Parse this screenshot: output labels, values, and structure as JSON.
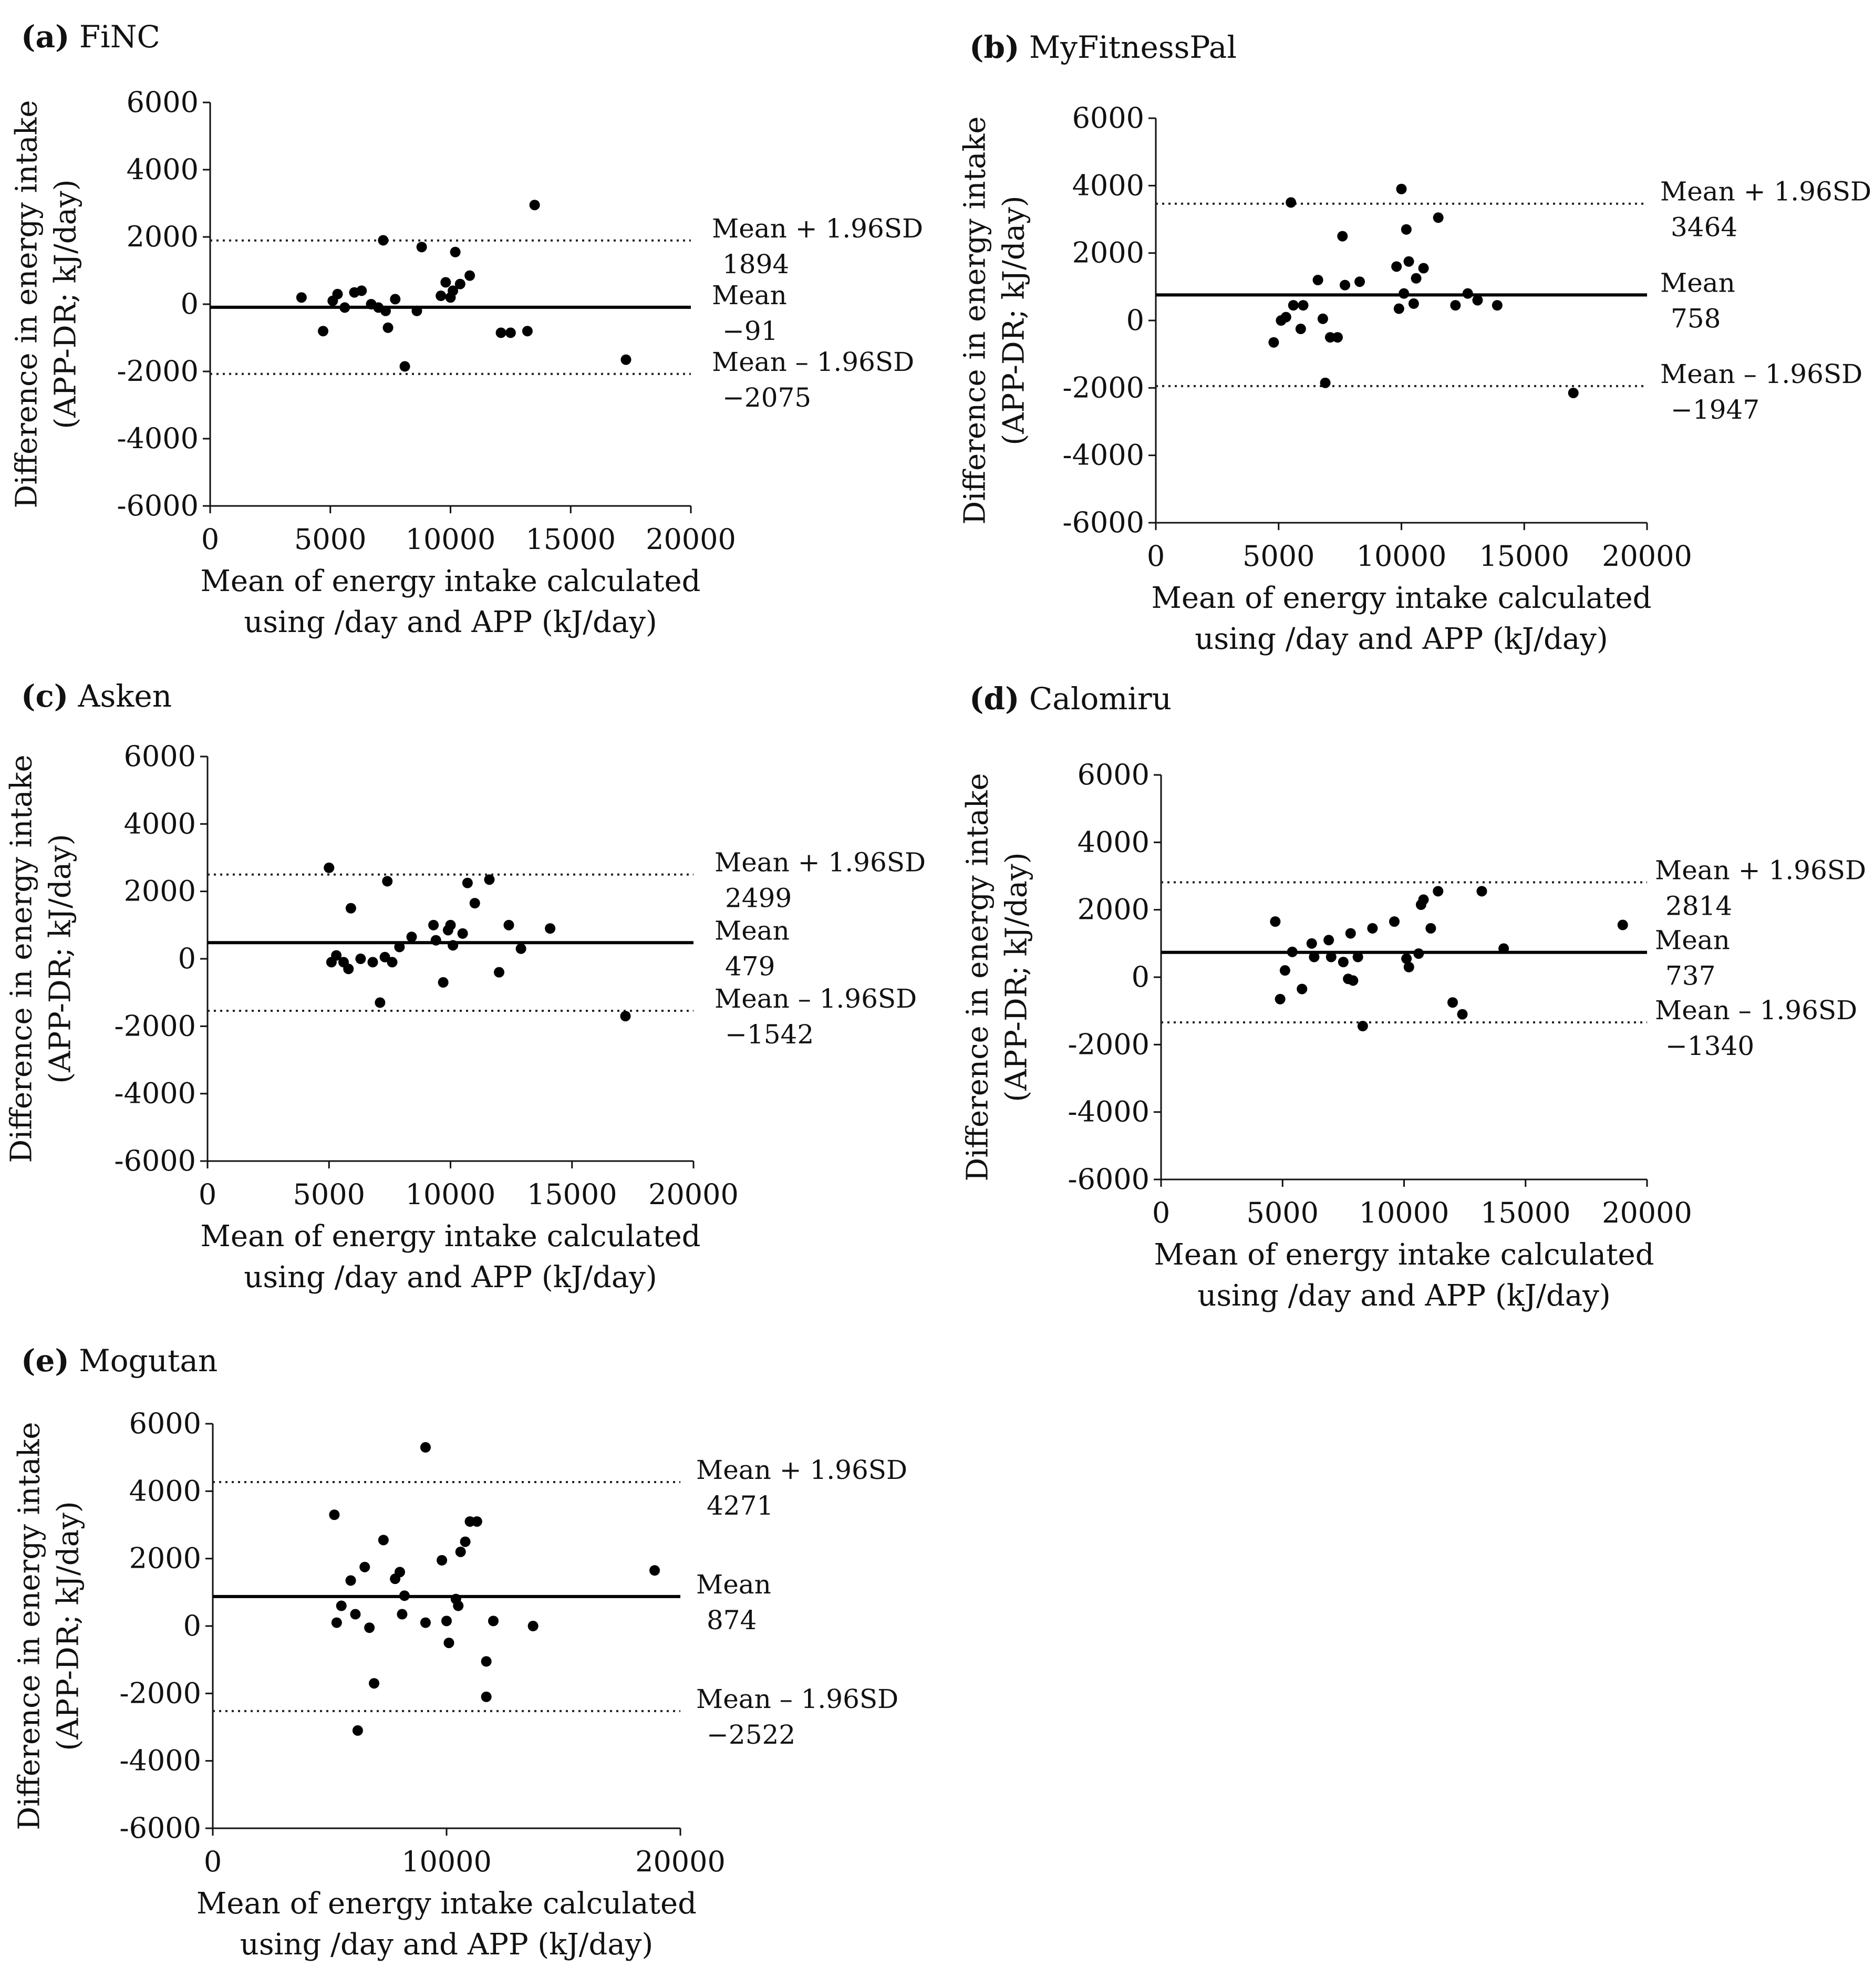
{
  "chart_data": [
    {
      "type": "scatter",
      "panel_letter": "(a)",
      "title": "FiNC",
      "xlabel": [
        "Mean of energy intake calculated",
        "using /day and APP (kJ/day)"
      ],
      "ylabel": [
        "Difference in energy intake",
        "(APP-DR; kJ/day)"
      ],
      "xlim": [
        0,
        20000
      ],
      "ylim": [
        -6000,
        6000
      ],
      "xticks": [
        "0",
        "5000",
        "10000",
        "15000",
        "20000"
      ],
      "yticks": [
        "6000",
        "4000",
        "2000",
        "0",
        "-2000",
        "-4000",
        "-6000"
      ],
      "legend_placement": "right",
      "mean": {
        "label": "Mean",
        "value": -91,
        "value_text": "−91"
      },
      "upper_loa": {
        "label": "Mean + 1.96SD",
        "value": 1894,
        "value_text": "1894"
      },
      "lower_loa": {
        "label": "Mean – 1.96SD",
        "value": -2075,
        "value_text": "−2075"
      },
      "points": [
        [
          3800,
          200
        ],
        [
          4700,
          -800
        ],
        [
          5100,
          100
        ],
        [
          5300,
          300
        ],
        [
          5600,
          -100
        ],
        [
          6000,
          350
        ],
        [
          6300,
          400
        ],
        [
          6700,
          0
        ],
        [
          7000,
          -100
        ],
        [
          7200,
          1900
        ],
        [
          7300,
          -200
        ],
        [
          7400,
          -700
        ],
        [
          7700,
          150
        ],
        [
          8100,
          -1850
        ],
        [
          8600,
          -200
        ],
        [
          8800,
          1700
        ],
        [
          9600,
          250
        ],
        [
          9800,
          650
        ],
        [
          10000,
          200
        ],
        [
          10100,
          400
        ],
        [
          10200,
          1550
        ],
        [
          10400,
          600
        ],
        [
          10800,
          850
        ],
        [
          12100,
          -850
        ],
        [
          12500,
          -850
        ],
        [
          13200,
          -800
        ],
        [
          13500,
          2950
        ],
        [
          17300,
          -1650
        ]
      ]
    },
    {
      "type": "scatter",
      "panel_letter": "(b)",
      "title": "MyFitnessPal",
      "xlabel": [
        "Mean of energy intake calculated",
        "using /day and APP (kJ/day)"
      ],
      "ylabel": [
        "Difference in energy intake",
        "(APP-DR; kJ/day)"
      ],
      "xlim": [
        0,
        20000
      ],
      "ylim": [
        -6000,
        6000
      ],
      "xticks": [
        "0",
        "5000",
        "10000",
        "15000",
        "20000"
      ],
      "yticks": [
        "6000",
        "4000",
        "2000",
        "0",
        "-2000",
        "-4000",
        "-6000"
      ],
      "legend_placement": "right",
      "mean": {
        "label": "Mean",
        "value": 758,
        "value_text": "758"
      },
      "upper_loa": {
        "label": "Mean + 1.96SD",
        "value": 3464,
        "value_text": "3464"
      },
      "lower_loa": {
        "label": "Mean – 1.96SD",
        "value": -1947,
        "value_text": "−1947"
      },
      "points": [
        [
          4800,
          -650
        ],
        [
          5100,
          0
        ],
        [
          5300,
          100
        ],
        [
          5500,
          3500
        ],
        [
          5600,
          450
        ],
        [
          5900,
          -250
        ],
        [
          6000,
          450
        ],
        [
          6600,
          1200
        ],
        [
          6800,
          50
        ],
        [
          6900,
          -1850
        ],
        [
          7100,
          -500
        ],
        [
          7400,
          -500
        ],
        [
          7600,
          2500
        ],
        [
          7700,
          1050
        ],
        [
          8300,
          1150
        ],
        [
          9800,
          1600
        ],
        [
          9900,
          350
        ],
        [
          10000,
          3900
        ],
        [
          10100,
          800
        ],
        [
          10200,
          2700
        ],
        [
          10300,
          1750
        ],
        [
          10500,
          500
        ],
        [
          10600,
          1250
        ],
        [
          10900,
          1550
        ],
        [
          11500,
          3050
        ],
        [
          12200,
          450
        ],
        [
          12700,
          800
        ],
        [
          13100,
          600
        ],
        [
          13900,
          450
        ],
        [
          17000,
          -2150
        ]
      ]
    },
    {
      "type": "scatter",
      "panel_letter": "(c)",
      "title": "Asken",
      "xlabel": [
        "Mean of energy intake calculated",
        "using /day and APP (kJ/day)"
      ],
      "ylabel": [
        "Difference in energy intake",
        "(APP-DR; kJ/day)"
      ],
      "xlim": [
        0,
        20000
      ],
      "ylim": [
        -6000,
        6000
      ],
      "xticks": [
        "0",
        "5000",
        "10000",
        "15000",
        "20000"
      ],
      "yticks": [
        "6000",
        "4000",
        "2000",
        "0",
        "-2000",
        "-4000",
        "-6000"
      ],
      "legend_placement": "right",
      "mean": {
        "label": "Mean",
        "value": 479,
        "value_text": "479"
      },
      "upper_loa": {
        "label": "Mean + 1.96SD",
        "value": 2499,
        "value_text": "2499"
      },
      "lower_loa": {
        "label": "Mean – 1.96SD",
        "value": -1542,
        "value_text": "−1542"
      },
      "points": [
        [
          5000,
          2700
        ],
        [
          5100,
          -100
        ],
        [
          5300,
          100
        ],
        [
          5600,
          -100
        ],
        [
          5800,
          -300
        ],
        [
          5900,
          1500
        ],
        [
          6300,
          0
        ],
        [
          6800,
          -100
        ],
        [
          7100,
          -1300
        ],
        [
          7300,
          50
        ],
        [
          7400,
          2300
        ],
        [
          7600,
          -100
        ],
        [
          7900,
          350
        ],
        [
          8400,
          650
        ],
        [
          9300,
          1000
        ],
        [
          9400,
          550
        ],
        [
          9700,
          -700
        ],
        [
          9900,
          850
        ],
        [
          10000,
          1000
        ],
        [
          10100,
          400
        ],
        [
          10500,
          750
        ],
        [
          10700,
          2250
        ],
        [
          11000,
          1650
        ],
        [
          11600,
          2350
        ],
        [
          12000,
          -400
        ],
        [
          12400,
          1000
        ],
        [
          12900,
          300
        ],
        [
          14100,
          900
        ],
        [
          17200,
          -1700
        ]
      ]
    },
    {
      "type": "scatter",
      "panel_letter": "(d)",
      "title": "Calomiru",
      "xlabel": [
        "Mean of energy intake calculated",
        "using /day and APP (kJ/day)"
      ],
      "ylabel": [
        "Difference in energy intake",
        "(APP-DR; kJ/day)"
      ],
      "xlim": [
        0,
        20000
      ],
      "ylim": [
        -6000,
        6000
      ],
      "xticks": [
        "0",
        "5000",
        "10000",
        "15000",
        "20000"
      ],
      "yticks": [
        "6000",
        "4000",
        "2000",
        "0",
        "-2000",
        "-4000",
        "-6000"
      ],
      "legend_placement": "right",
      "mean": {
        "label": "Mean",
        "value": 737,
        "value_text": "737"
      },
      "upper_loa": {
        "label": "Mean + 1.96SD",
        "value": 2814,
        "value_text": "2814"
      },
      "lower_loa": {
        "label": "Mean – 1.96SD",
        "value": -1340,
        "value_text": "−1340"
      },
      "points": [
        [
          4700,
          1650
        ],
        [
          4900,
          -650
        ],
        [
          5100,
          200
        ],
        [
          5400,
          750
        ],
        [
          5800,
          -350
        ],
        [
          6200,
          1000
        ],
        [
          6300,
          600
        ],
        [
          6900,
          1100
        ],
        [
          7000,
          600
        ],
        [
          7500,
          450
        ],
        [
          7700,
          -50
        ],
        [
          7800,
          1300
        ],
        [
          7900,
          -100
        ],
        [
          8100,
          600
        ],
        [
          8300,
          -1450
        ],
        [
          8700,
          1450
        ],
        [
          9600,
          1650
        ],
        [
          10100,
          550
        ],
        [
          10200,
          300
        ],
        [
          10600,
          700
        ],
        [
          10700,
          2150
        ],
        [
          10800,
          2300
        ],
        [
          11100,
          1450
        ],
        [
          11400,
          2550
        ],
        [
          12000,
          -750
        ],
        [
          12400,
          -1100
        ],
        [
          13200,
          2550
        ],
        [
          14100,
          850
        ],
        [
          19000,
          1550
        ]
      ]
    },
    {
      "type": "scatter",
      "panel_letter": "(e)",
      "title": "Mogutan",
      "xlabel": [
        "Mean of energy intake calculated",
        "using /day and APP (kJ/day)"
      ],
      "ylabel": [
        "Difference in energy intake",
        "(APP-DR; kJ/day)"
      ],
      "xlim": [
        0,
        20000
      ],
      "ylim": [
        -6000,
        6000
      ],
      "xticks": [
        "0",
        "10000",
        "20000"
      ],
      "yticks": [
        "6000",
        "4000",
        "2000",
        "0",
        "-2000",
        "-4000",
        "-6000"
      ],
      "legend_placement": "right",
      "mean": {
        "label": "Mean",
        "value": 874,
        "value_text": "874"
      },
      "upper_loa": {
        "label": "Mean + 1.96SD",
        "value": 4271,
        "value_text": "4271"
      },
      "lower_loa": {
        "label": "Mean – 1.96SD",
        "value": -2522,
        "value_text": "−2522"
      },
      "points": [
        [
          5200,
          3300
        ],
        [
          5300,
          100
        ],
        [
          5500,
          600
        ],
        [
          5900,
          1350
        ],
        [
          6100,
          350
        ],
        [
          6200,
          -3100
        ],
        [
          6500,
          1750
        ],
        [
          6700,
          -50
        ],
        [
          6900,
          -1700
        ],
        [
          7300,
          2550
        ],
        [
          7800,
          1400
        ],
        [
          8000,
          1600
        ],
        [
          8100,
          350
        ],
        [
          8200,
          900
        ],
        [
          9100,
          100
        ],
        [
          9100,
          5300
        ],
        [
          9800,
          1950
        ],
        [
          10000,
          150
        ],
        [
          10100,
          -500
        ],
        [
          10400,
          800
        ],
        [
          10500,
          600
        ],
        [
          10600,
          2200
        ],
        [
          10800,
          2500
        ],
        [
          11000,
          3100
        ],
        [
          11300,
          3100
        ],
        [
          11700,
          -1050
        ],
        [
          11700,
          -2100
        ],
        [
          12000,
          150
        ],
        [
          13700,
          0
        ],
        [
          18900,
          1650
        ]
      ]
    }
  ]
}
